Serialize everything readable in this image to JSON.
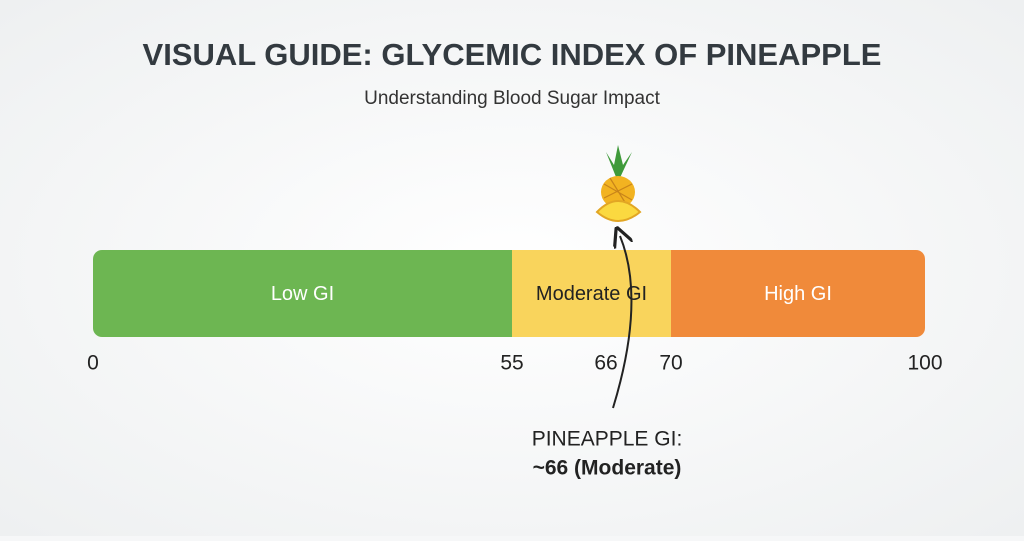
{
  "title": "VISUAL GUIDE: GLYCEMIC INDEX OF PINEAPPLE",
  "subtitle": "Understanding Blood Sugar Impact",
  "scale": {
    "ticks": [
      0,
      55,
      66,
      70,
      100
    ],
    "segments": [
      {
        "label": "Low GI",
        "start": 0,
        "end": 55,
        "color": "#6db652"
      },
      {
        "label": "Moderate GI",
        "start": 55,
        "end": 70,
        "color": "#f9d45c"
      },
      {
        "label": "High GI",
        "start": 70,
        "end": 100,
        "color": "#f08a3a"
      }
    ]
  },
  "marker": {
    "value": 66,
    "label": "PINEAPPLE GI:",
    "value_label": "~66 (Moderate)"
  }
}
